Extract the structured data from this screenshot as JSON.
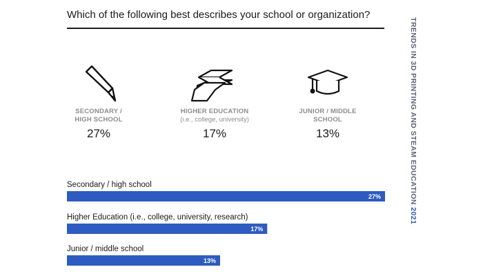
{
  "title": "Which of the following best describes your school or organization?",
  "sidebar": {
    "text": "TRENDS IN 3D PRINTING AND STEAM EDUCATION",
    "year": "2021"
  },
  "stats": [
    {
      "label": "SECONDARY /\nHIGH SCHOOL",
      "sub": "",
      "value": "27%",
      "icon": "pencil-icon"
    },
    {
      "label": "HIGHER EDUCATION",
      "sub": "(i.e., college, university)",
      "value": "17%",
      "icon": "stacked-layers-icon"
    },
    {
      "label": "JUNIOR / MIDDLE\nSCHOOL",
      "sub": "",
      "value": "13%",
      "icon": "graduation-cap-icon"
    }
  ],
  "chart_data": {
    "type": "bar",
    "orientation": "horizontal",
    "categories": [
      "Secondary / high school",
      "Higher Education (i.e., college, university, research)",
      "Junior / middle school"
    ],
    "values": [
      27,
      17,
      13
    ],
    "value_labels": [
      "27%",
      "17%",
      "13%"
    ],
    "xlim": [
      0,
      27
    ],
    "bar_color": "#2e5bbf",
    "label_color": "#ffffff"
  }
}
